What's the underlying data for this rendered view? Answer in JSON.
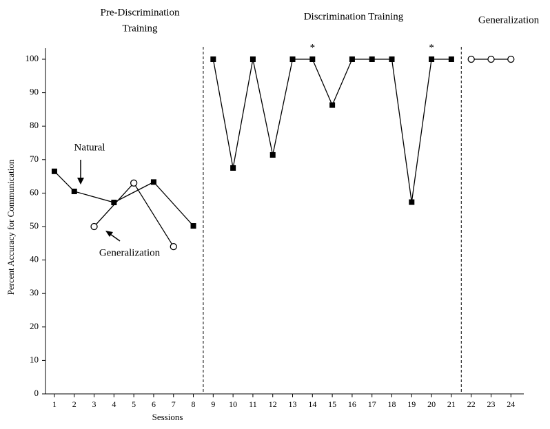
{
  "chart_data": {
    "type": "line",
    "xlabel": "Sessions",
    "ylabel": "Percent Accuracy for Communication",
    "phase_titles": [
      [
        "Pre-Discrimination",
        "Training"
      ],
      [
        "Discrimination Training"
      ],
      [
        "Generalization"
      ]
    ],
    "phase_lines": [
      8.5,
      21.5
    ],
    "annotations": [
      {
        "text": "Natural"
      },
      {
        "text": "Generalization"
      }
    ],
    "asterisks": [
      {
        "text": "*",
        "x": 14
      },
      {
        "text": "*",
        "x": 20
      }
    ],
    "xlim": [
      0.55,
      24.65
    ],
    "xticks": [
      1,
      2,
      3,
      4,
      5,
      6,
      7,
      8,
      9,
      10,
      11,
      12,
      13,
      14,
      15,
      16,
      17,
      18,
      19,
      20,
      21,
      22,
      23,
      24
    ],
    "ylim": [
      0,
      100
    ],
    "yticks": [
      0,
      10,
      20,
      30,
      40,
      50,
      60,
      70,
      80,
      90,
      100
    ],
    "series": [
      {
        "marker": "square",
        "color": "#000000",
        "x": [
          1,
          2,
          4,
          6,
          8,
          9,
          10,
          11,
          12,
          13,
          14,
          15,
          16,
          17,
          18,
          19,
          20,
          21
        ],
        "values": [
          66.5,
          60.5,
          57.2,
          63.3,
          50.2,
          100,
          67.5,
          100,
          71.4,
          100,
          100,
          86.3,
          100,
          100,
          100,
          57.3,
          100,
          100
        ]
      },
      {
        "marker": "circle",
        "color": "#000000",
        "x": [
          3,
          5,
          7,
          22,
          23,
          24
        ],
        "values": [
          50,
          63,
          44,
          100,
          100,
          100
        ]
      }
    ]
  }
}
